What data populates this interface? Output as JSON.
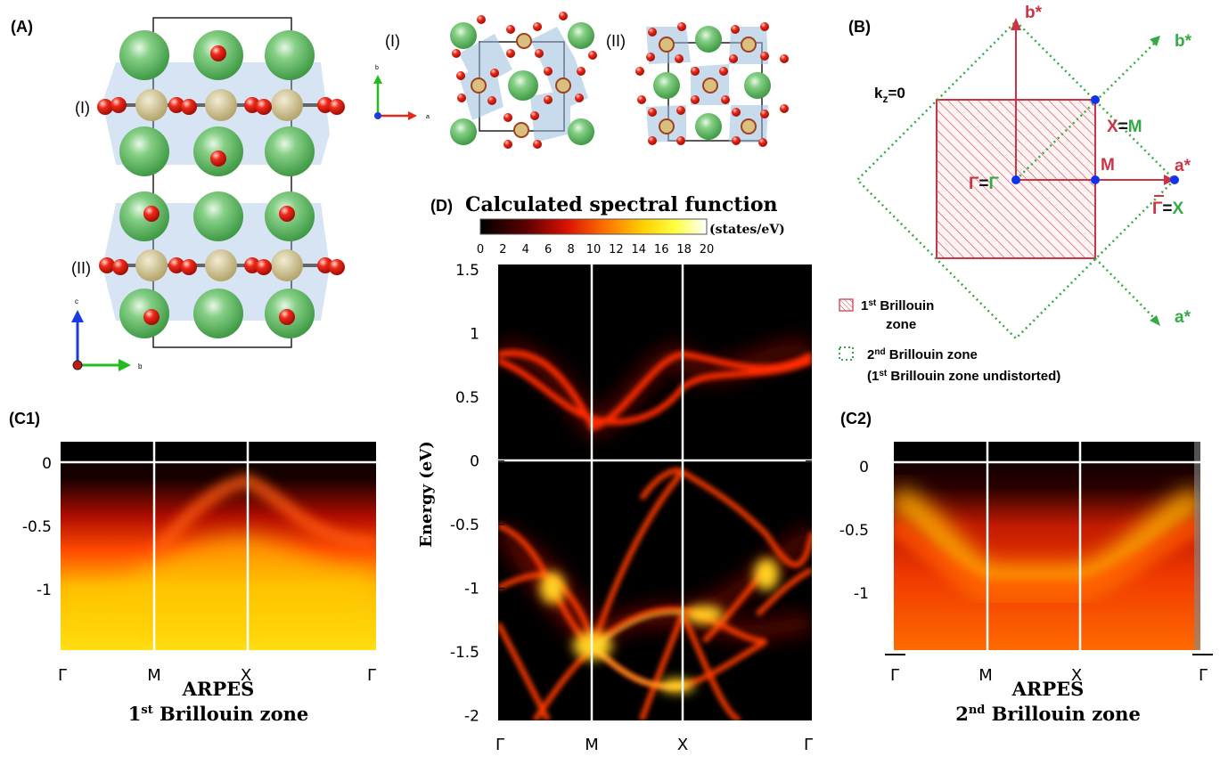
{
  "panels": {
    "A": {
      "tag": "(A)",
      "layer1": "(I)",
      "layer2": "(II)",
      "axis_c": "c",
      "axis_b": "b"
    },
    "B": {
      "tag": "(B)",
      "kz": "k",
      "kz_sub": "z",
      "kz_val": "=0",
      "b_star_red": "b*",
      "b_star_green": "b*",
      "a_star_red": "a*",
      "a_star_green": "a*",
      "X_red": "X",
      "M_green": "M",
      "M_red": "M",
      "Gamma_red": "Γ",
      "Gamma_green": "Γ",
      "Gammabar_red": "Γ",
      "X_green": "X",
      "eq": "=",
      "legend1_pre": "1",
      "legend1_sup": "st",
      "legend1_post": " Brillouin",
      "legend1_line2": "zone",
      "legend2_pre": "2",
      "legend2_sup": "nd",
      "legend2_post": " Brillouin zone",
      "legend2_line2_pre": "(1",
      "legend2_line2_sup": "st",
      "legend2_line2_post": " Brillouin zone undistorted)",
      "colors": {
        "red": "#cc3344",
        "green": "#33aa44",
        "blue": "#1133ee"
      }
    },
    "top_views": {
      "label1": "(I)",
      "label2": "(II)",
      "axis_b": "b",
      "axis_a": "a"
    },
    "C1": {
      "tag": "(C1)",
      "yticks": [
        "0",
        "-0.5",
        "-1"
      ],
      "xticks": [
        "Γ",
        "M",
        "X",
        "Γ"
      ],
      "caption1": "ARPES",
      "caption2_pre": "1",
      "caption2_sup": "st",
      "caption2_post": " Brillouin zone"
    },
    "C2": {
      "tag": "(C2)",
      "yticks": [
        "0",
        "-0.5",
        "-1"
      ],
      "xticks": [
        "Γ",
        "M",
        "X",
        "Γ"
      ],
      "caption1": "ARPES",
      "caption2_pre": "2",
      "caption2_sup": "nd",
      "caption2_post": " Brillouin zone"
    },
    "D": {
      "tag": "(D)",
      "title": "Calculated spectral function",
      "colorbar_ticks": [
        "0",
        "2",
        "4",
        "6",
        "8",
        "10",
        "12",
        "14",
        "16",
        "18",
        "20"
      ],
      "colorbar_unit": "(states/eV)",
      "ylabel": "Energy (eV)",
      "yticks": [
        "1.5",
        "1",
        "0.5",
        "0",
        "-0.5",
        "-1",
        "-1.5",
        "-2"
      ],
      "xticks": [
        "Γ",
        "M",
        "X",
        "Γ"
      ]
    }
  },
  "chart_data": {
    "type": "heatmap",
    "title": "Calculated spectral function",
    "ylabel": "Energy (eV)",
    "xlabel": "",
    "x_path": [
      "Γ",
      "M",
      "X",
      "Γ"
    ],
    "ylim": [
      -2,
      1.5
    ],
    "color_range": [
      0,
      20
    ],
    "color_unit": "(states/eV)"
  }
}
